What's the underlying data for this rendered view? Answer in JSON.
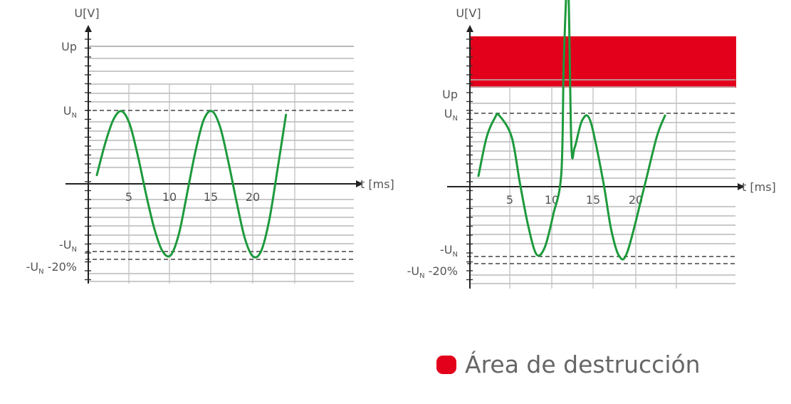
{
  "chart_data": [
    {
      "type": "line",
      "ylabel": "U[V]",
      "xlabel": "t [ms]",
      "x_ticks": [
        "5",
        "10",
        "15",
        "20"
      ],
      "y_levels": {
        "Up": {
          "label": "Up"
        },
        "UN": {
          "label": "U",
          "sub": "N"
        },
        "minusUN": {
          "label": "-U",
          "sub": "N"
        },
        "minusUN20": {
          "label": "-U",
          "sub": "N",
          "suffix": " -20%"
        }
      },
      "series": [
        {
          "color": "#1d9a3c",
          "x": [
            0,
            1,
            2,
            3,
            4,
            5,
            6,
            7,
            8,
            9,
            10,
            11,
            12,
            13,
            14,
            15,
            16,
            17,
            18,
            19,
            20,
            21,
            22,
            23
          ],
          "y": [
            0.12,
            0.55,
            0.88,
            1.0,
            0.82,
            0.38,
            -0.15,
            -0.62,
            -0.93,
            -0.98,
            -0.68,
            -0.12,
            0.45,
            0.88,
            1.0,
            0.78,
            0.3,
            -0.25,
            -0.75,
            -1.0,
            -0.92,
            -0.48,
            0.22,
            0.95
          ]
        }
      ]
    },
    {
      "type": "line",
      "ylabel": "U[V]",
      "xlabel": "t [ms]",
      "x_ticks": [
        "5",
        "10",
        "15",
        "20"
      ],
      "shaded_area": "destruction",
      "y_levels": {
        "Up": {
          "label": "Up"
        },
        "UN": {
          "label": "U",
          "sub": "N"
        },
        "minusUN": {
          "label": "-U",
          "sub": "N"
        },
        "minusUN20": {
          "label": "-U",
          "sub": "N",
          "suffix": " -20%"
        }
      },
      "series": [
        {
          "color": "#1d9a3c",
          "x": [
            0,
            1,
            2,
            2.5,
            4,
            5,
            6,
            7,
            8,
            9,
            10,
            10.3,
            10.8,
            11.2,
            11.6,
            12.5,
            13.5,
            15,
            16,
            17,
            18,
            20,
            21.5,
            22.5
          ],
          "y": [
            0.15,
            0.7,
            0.97,
            1.0,
            0.7,
            0.05,
            -0.55,
            -0.95,
            -0.85,
            -0.4,
            0.2,
            1.8,
            2.9,
            0.6,
            0.55,
            0.93,
            0.92,
            0.1,
            -0.6,
            -0.98,
            -0.9,
            0.0,
            0.7,
            1.0
          ]
        }
      ]
    }
  ],
  "legend": {
    "color": "#e3001b",
    "label": "Área de destrucción"
  }
}
